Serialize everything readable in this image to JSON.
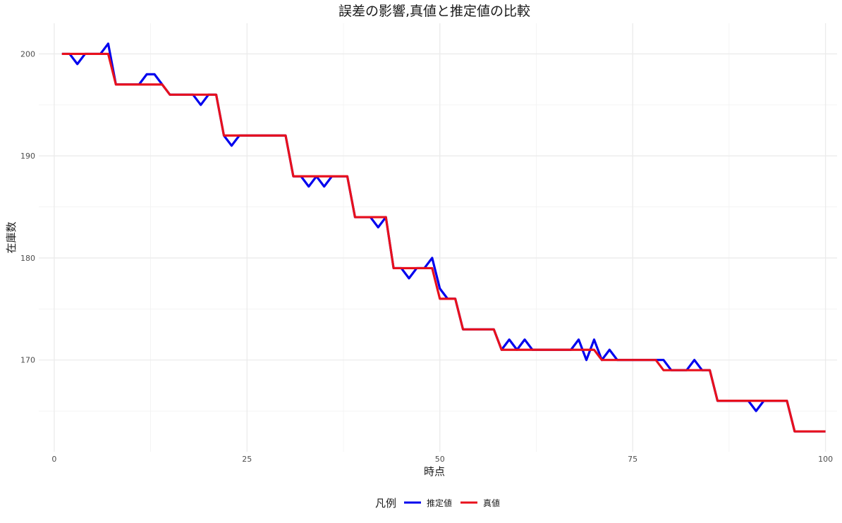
{
  "chart_data": {
    "type": "line",
    "title": "誤差の影響,真値と推定値の比較",
    "xlabel": "時点",
    "ylabel": "在庫数",
    "xlim": [
      -2,
      101.5
    ],
    "ylim": [
      161,
      203
    ],
    "x_ticks": [
      0,
      25,
      50,
      75,
      100
    ],
    "x_tick_labels": [
      "0",
      "25",
      "50",
      "75",
      "100"
    ],
    "x_minor": [
      12.5,
      37.5,
      62.5,
      87.5
    ],
    "y_ticks": [
      170,
      180,
      190,
      200
    ],
    "y_tick_labels": [
      "170",
      "180",
      "190",
      "200"
    ],
    "y_minor": [
      165,
      175,
      185,
      195
    ],
    "grid": true,
    "legend": {
      "title": "凡例",
      "position": "bottom",
      "entries": [
        {
          "label": "推定値",
          "color": "#0000ee"
        },
        {
          "label": "真値",
          "color": "#e8101c"
        }
      ]
    },
    "series": [
      {
        "name": "推定値",
        "color": "#0000ee",
        "x": [
          1,
          2,
          3,
          4,
          5,
          6,
          7,
          8,
          9,
          10,
          11,
          12,
          13,
          14,
          15,
          16,
          17,
          18,
          19,
          20,
          21,
          22,
          23,
          24,
          25,
          26,
          27,
          28,
          29,
          30,
          31,
          32,
          33,
          34,
          35,
          36,
          37,
          38,
          39,
          40,
          41,
          42,
          43,
          44,
          45,
          46,
          47,
          48,
          49,
          50,
          51,
          52,
          53,
          54,
          55,
          56,
          57,
          58,
          59,
          60,
          61,
          62,
          63,
          64,
          65,
          66,
          67,
          68,
          69,
          70,
          71,
          72,
          73,
          74,
          75,
          76,
          77,
          78,
          79,
          80,
          81,
          82,
          83,
          84,
          85,
          86,
          87,
          88,
          89,
          90,
          91,
          92,
          93,
          94,
          95,
          96,
          97,
          98,
          99,
          100
        ],
        "values": [
          200,
          200,
          199,
          200,
          200,
          200,
          201,
          197,
          197,
          197,
          197,
          198,
          198,
          197,
          196,
          196,
          196,
          196,
          195,
          196,
          196,
          192,
          191,
          192,
          192,
          192,
          192,
          192,
          192,
          192,
          188,
          188,
          187,
          188,
          187,
          188,
          188,
          188,
          184,
          184,
          184,
          183,
          184,
          179,
          179,
          178,
          179,
          179,
          180,
          177,
          176,
          176,
          173,
          173,
          173,
          173,
          173,
          171,
          172,
          171,
          172,
          171,
          171,
          171,
          171,
          171,
          171,
          172,
          170,
          172,
          170,
          171,
          170,
          170,
          170,
          170,
          170,
          170,
          170,
          169,
          169,
          169,
          170,
          169,
          169,
          166,
          166,
          166,
          166,
          166,
          165,
          166,
          166,
          166,
          166,
          163,
          163,
          163,
          163,
          163
        ]
      },
      {
        "name": "真値",
        "color": "#e8101c",
        "x": [
          1,
          2,
          3,
          4,
          5,
          6,
          7,
          8,
          9,
          10,
          11,
          12,
          13,
          14,
          15,
          16,
          17,
          18,
          19,
          20,
          21,
          22,
          23,
          24,
          25,
          26,
          27,
          28,
          29,
          30,
          31,
          32,
          33,
          34,
          35,
          36,
          37,
          38,
          39,
          40,
          41,
          42,
          43,
          44,
          45,
          46,
          47,
          48,
          49,
          50,
          51,
          52,
          53,
          54,
          55,
          56,
          57,
          58,
          59,
          60,
          61,
          62,
          63,
          64,
          65,
          66,
          67,
          68,
          69,
          70,
          71,
          72,
          73,
          74,
          75,
          76,
          77,
          78,
          79,
          80,
          81,
          82,
          83,
          84,
          85,
          86,
          87,
          88,
          89,
          90,
          91,
          92,
          93,
          94,
          95,
          96,
          97,
          98,
          99,
          100
        ],
        "values": [
          200,
          200,
          200,
          200,
          200,
          200,
          200,
          197,
          197,
          197,
          197,
          197,
          197,
          197,
          196,
          196,
          196,
          196,
          196,
          196,
          196,
          192,
          192,
          192,
          192,
          192,
          192,
          192,
          192,
          192,
          188,
          188,
          188,
          188,
          188,
          188,
          188,
          188,
          184,
          184,
          184,
          184,
          184,
          179,
          179,
          179,
          179,
          179,
          179,
          176,
          176,
          176,
          173,
          173,
          173,
          173,
          173,
          171,
          171,
          171,
          171,
          171,
          171,
          171,
          171,
          171,
          171,
          171,
          171,
          171,
          170,
          170,
          170,
          170,
          170,
          170,
          170,
          170,
          169,
          169,
          169,
          169,
          169,
          169,
          169,
          166,
          166,
          166,
          166,
          166,
          166,
          166,
          166,
          166,
          166,
          163,
          163,
          163,
          163,
          163
        ]
      }
    ]
  }
}
